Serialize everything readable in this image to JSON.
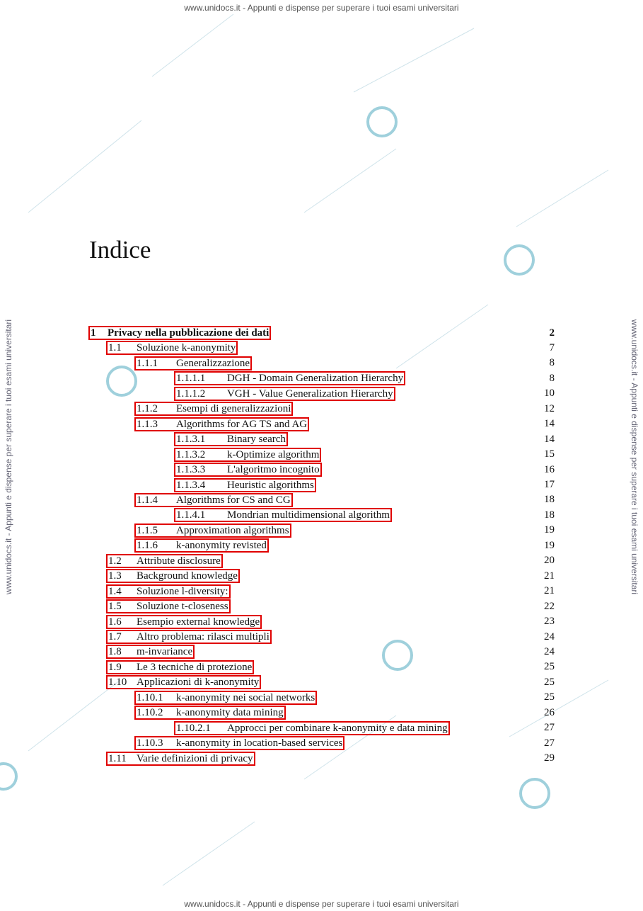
{
  "watermark": {
    "top": "www.unidocs.it - Appunti e dispense per superare i tuoi esami universitari",
    "bottom": "www.unidocs.it - Appunti e dispense per superare i tuoi esami universitari",
    "left": "www.unidocs.it - Appunti e dispense per superare i tuoi esami universitari",
    "right": "www.unidocs.it - Appunti e dispense per superare i tuoi esami universitari"
  },
  "title": "Indice",
  "entries": [
    {
      "number": "1",
      "text": "Privacy nella pubblicazione dei dati",
      "page": 2
    },
    {
      "number": "1.1",
      "text": "Soluzione k-anonymity",
      "page": 7
    },
    {
      "number": "1.1.1",
      "text": "Generalizzazione",
      "page": 8
    },
    {
      "number": "1.1.1.1",
      "text": "DGH - Domain Generalization Hierarchy",
      "page": 8
    },
    {
      "number": "1.1.1.2",
      "text": "VGH - Value Generalization Hierarchy",
      "page": 10
    },
    {
      "number": "1.1.2",
      "text": "Esempi di generalizzazioni",
      "page": 12
    },
    {
      "number": "1.1.3",
      "text": "Algorithms for AG TS and AG",
      "page": 14
    },
    {
      "number": "1.1.3.1",
      "text": "Binary search",
      "page": 14
    },
    {
      "number": "1.1.3.2",
      "text": "k-Optimize algorithm",
      "page": 15
    },
    {
      "number": "1.1.3.3",
      "text": "L'algoritmo incognito",
      "page": 16
    },
    {
      "number": "1.1.3.4",
      "text": "Heuristic algorithms",
      "page": 17
    },
    {
      "number": "1.1.4",
      "text": "Algorithms for CS and CG",
      "page": 18
    },
    {
      "number": "1.1.4.1",
      "text": "Mondrian multidimensional algorithm",
      "page": 18
    },
    {
      "number": "1.1.5",
      "text": "Approximation algorithms",
      "page": 19
    },
    {
      "number": "1.1.6",
      "text": "k-anonymity revisted",
      "page": 19
    },
    {
      "number": "1.2",
      "text": "Attribute disclosure",
      "page": 20
    },
    {
      "number": "1.3",
      "text": "Background knowledge",
      "page": 21
    },
    {
      "number": "1.4",
      "text": "Soluzione l-diversity:",
      "page": 21
    },
    {
      "number": "1.5",
      "text": "Soluzione t-closeness",
      "page": 22
    },
    {
      "number": "1.6",
      "text": "Esempio external knowledge",
      "page": 23
    },
    {
      "number": "1.7",
      "text": "Altro problema: rilasci multipli",
      "page": 24
    },
    {
      "number": "1.8",
      "text": "m-invariance",
      "page": 24
    },
    {
      "number": "1.9",
      "text": "Le 3 tecniche di protezione",
      "page": 25
    },
    {
      "number": "1.10",
      "text": "Applicazioni di k-anonymity",
      "page": 25
    },
    {
      "number": "1.10.1",
      "text": "k-anonymity nei social networks",
      "page": 25
    },
    {
      "number": "1.10.2",
      "text": "k-anonymity data mining",
      "page": 26
    },
    {
      "number": "1.10.2.1",
      "text": "Approcci per combinare k-anonymity e data mining",
      "page": 27
    },
    {
      "number": "1.10.3",
      "text": "k-anonymity in location-based services",
      "page": 27
    },
    {
      "number": "1.11",
      "text": "Varie definizioni di privacy",
      "page": 29
    }
  ]
}
